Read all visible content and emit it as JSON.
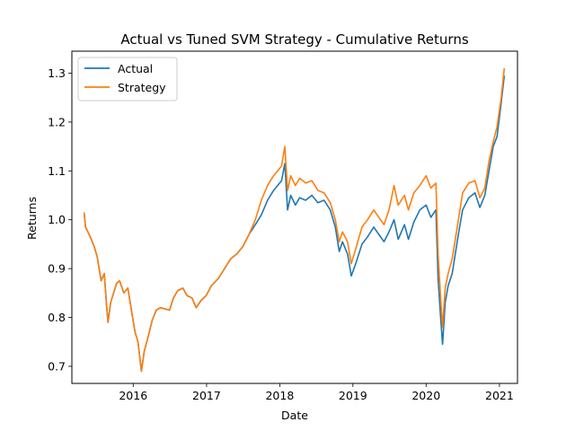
{
  "chart_data": {
    "type": "line",
    "title": "Actual vs Tuned SVM Strategy - Cumulative Returns",
    "xlabel": "Date",
    "ylabel": "Returns",
    "x_ticks": [
      "2016",
      "2017",
      "2018",
      "2019",
      "2020",
      "2021"
    ],
    "y_ticks": [
      "0.7",
      "0.8",
      "0.9",
      "1.0",
      "1.1",
      "1.2",
      "1.3"
    ],
    "xlim": [
      "2015-03-01",
      "2021-04-01"
    ],
    "ylim": [
      0.665,
      1.345
    ],
    "grid": false,
    "legend_position": "upper-left",
    "series": [
      {
        "name": "Actual",
        "color": "#1f77b4",
        "points": [
          [
            "2015-05-01",
            1.015
          ],
          [
            "2015-05-08",
            0.985
          ],
          [
            "2015-06-01",
            0.965
          ],
          [
            "2015-06-20",
            0.945
          ],
          [
            "2015-07-05",
            0.925
          ],
          [
            "2015-07-25",
            0.875
          ],
          [
            "2015-08-10",
            0.89
          ],
          [
            "2015-08-20",
            0.83
          ],
          [
            "2015-08-28",
            0.79
          ],
          [
            "2015-09-10",
            0.83
          ],
          [
            "2015-09-25",
            0.85
          ],
          [
            "2015-10-10",
            0.87
          ],
          [
            "2015-10-25",
            0.875
          ],
          [
            "2015-11-15",
            0.85
          ],
          [
            "2015-12-05",
            0.86
          ],
          [
            "2015-12-25",
            0.81
          ],
          [
            "2016-01-10",
            0.77
          ],
          [
            "2016-01-25",
            0.75
          ],
          [
            "2016-02-11",
            0.69
          ],
          [
            "2016-02-25",
            0.73
          ],
          [
            "2016-03-15",
            0.76
          ],
          [
            "2016-04-05",
            0.795
          ],
          [
            "2016-04-25",
            0.815
          ],
          [
            "2016-05-15",
            0.82
          ],
          [
            "2016-06-30",
            0.815
          ],
          [
            "2016-07-20",
            0.84
          ],
          [
            "2016-08-10",
            0.855
          ],
          [
            "2016-09-05",
            0.86
          ],
          [
            "2016-09-25",
            0.845
          ],
          [
            "2016-10-20",
            0.84
          ],
          [
            "2016-11-10",
            0.82
          ],
          [
            "2016-12-05",
            0.835
          ],
          [
            "2016-12-30",
            0.845
          ],
          [
            "2017-01-25",
            0.865
          ],
          [
            "2017-03-01",
            0.88
          ],
          [
            "2017-04-01",
            0.9
          ],
          [
            "2017-05-01",
            0.92
          ],
          [
            "2017-06-01",
            0.93
          ],
          [
            "2017-07-01",
            0.945
          ],
          [
            "2017-08-01",
            0.97
          ],
          [
            "2017-09-01",
            0.99
          ],
          [
            "2017-10-01",
            1.01
          ],
          [
            "2017-11-01",
            1.04
          ],
          [
            "2017-12-01",
            1.06
          ],
          [
            "2018-01-10",
            1.08
          ],
          [
            "2018-01-26",
            1.115
          ],
          [
            "2018-02-09",
            1.02
          ],
          [
            "2018-02-25",
            1.05
          ],
          [
            "2018-03-20",
            1.03
          ],
          [
            "2018-04-10",
            1.045
          ],
          [
            "2018-05-10",
            1.04
          ],
          [
            "2018-06-10",
            1.05
          ],
          [
            "2018-07-10",
            1.035
          ],
          [
            "2018-08-10",
            1.04
          ],
          [
            "2018-09-10",
            1.02
          ],
          [
            "2018-10-05",
            0.985
          ],
          [
            "2018-10-25",
            0.935
          ],
          [
            "2018-11-10",
            0.955
          ],
          [
            "2018-12-05",
            0.93
          ],
          [
            "2018-12-24",
            0.885
          ],
          [
            "2019-01-15",
            0.91
          ],
          [
            "2019-02-15",
            0.95
          ],
          [
            "2019-03-15",
            0.965
          ],
          [
            "2019-04-15",
            0.985
          ],
          [
            "2019-05-10",
            0.97
          ],
          [
            "2019-06-05",
            0.955
          ],
          [
            "2019-06-30",
            0.975
          ],
          [
            "2019-07-25",
            1.0
          ],
          [
            "2019-08-15",
            0.96
          ],
          [
            "2019-09-15",
            0.99
          ],
          [
            "2019-10-05",
            0.96
          ],
          [
            "2019-11-01",
            0.995
          ],
          [
            "2019-12-01",
            1.02
          ],
          [
            "2020-01-01",
            1.03
          ],
          [
            "2020-01-25",
            1.005
          ],
          [
            "2020-02-19",
            1.02
          ],
          [
            "2020-03-01",
            0.88
          ],
          [
            "2020-03-15",
            0.79
          ],
          [
            "2020-03-23",
            0.745
          ],
          [
            "2020-04-05",
            0.83
          ],
          [
            "2020-04-20",
            0.865
          ],
          [
            "2020-05-10",
            0.89
          ],
          [
            "2020-06-10",
            0.97
          ],
          [
            "2020-07-01",
            1.02
          ],
          [
            "2020-08-01",
            1.045
          ],
          [
            "2020-09-01",
            1.055
          ],
          [
            "2020-09-25",
            1.025
          ],
          [
            "2020-10-20",
            1.05
          ],
          [
            "2020-11-10",
            1.1
          ],
          [
            "2020-12-01",
            1.15
          ],
          [
            "2020-12-20",
            1.17
          ],
          [
            "2021-01-10",
            1.24
          ],
          [
            "2021-01-25",
            1.295
          ]
        ]
      },
      {
        "name": "Strategy",
        "color": "#ff7f0e",
        "points": [
          [
            "2015-05-01",
            1.015
          ],
          [
            "2015-05-08",
            0.985
          ],
          [
            "2015-06-01",
            0.965
          ],
          [
            "2015-06-20",
            0.945
          ],
          [
            "2015-07-05",
            0.925
          ],
          [
            "2015-07-25",
            0.875
          ],
          [
            "2015-08-10",
            0.89
          ],
          [
            "2015-08-20",
            0.83
          ],
          [
            "2015-08-28",
            0.79
          ],
          [
            "2015-09-10",
            0.83
          ],
          [
            "2015-09-25",
            0.85
          ],
          [
            "2015-10-10",
            0.87
          ],
          [
            "2015-10-25",
            0.875
          ],
          [
            "2015-11-15",
            0.85
          ],
          [
            "2015-12-05",
            0.86
          ],
          [
            "2015-12-25",
            0.81
          ],
          [
            "2016-01-10",
            0.77
          ],
          [
            "2016-01-25",
            0.75
          ],
          [
            "2016-02-11",
            0.69
          ],
          [
            "2016-02-25",
            0.73
          ],
          [
            "2016-03-15",
            0.76
          ],
          [
            "2016-04-05",
            0.795
          ],
          [
            "2016-04-25",
            0.815
          ],
          [
            "2016-05-15",
            0.82
          ],
          [
            "2016-06-30",
            0.815
          ],
          [
            "2016-07-20",
            0.84
          ],
          [
            "2016-08-10",
            0.855
          ],
          [
            "2016-09-05",
            0.86
          ],
          [
            "2016-09-25",
            0.845
          ],
          [
            "2016-10-20",
            0.84
          ],
          [
            "2016-11-10",
            0.82
          ],
          [
            "2016-12-05",
            0.835
          ],
          [
            "2016-12-30",
            0.845
          ],
          [
            "2017-01-25",
            0.865
          ],
          [
            "2017-03-01",
            0.88
          ],
          [
            "2017-04-01",
            0.9
          ],
          [
            "2017-05-01",
            0.92
          ],
          [
            "2017-06-01",
            0.93
          ],
          [
            "2017-07-01",
            0.945
          ],
          [
            "2017-08-01",
            0.97
          ],
          [
            "2017-09-01",
            1.0
          ],
          [
            "2017-10-01",
            1.04
          ],
          [
            "2017-11-01",
            1.07
          ],
          [
            "2017-12-01",
            1.09
          ],
          [
            "2018-01-10",
            1.11
          ],
          [
            "2018-01-26",
            1.15
          ],
          [
            "2018-02-09",
            1.06
          ],
          [
            "2018-02-25",
            1.09
          ],
          [
            "2018-03-20",
            1.07
          ],
          [
            "2018-04-10",
            1.085
          ],
          [
            "2018-05-10",
            1.075
          ],
          [
            "2018-06-10",
            1.08
          ],
          [
            "2018-07-10",
            1.06
          ],
          [
            "2018-08-10",
            1.055
          ],
          [
            "2018-09-10",
            1.035
          ],
          [
            "2018-10-05",
            1.0
          ],
          [
            "2018-10-25",
            0.955
          ],
          [
            "2018-11-10",
            0.975
          ],
          [
            "2018-12-05",
            0.955
          ],
          [
            "2018-12-24",
            0.91
          ],
          [
            "2019-01-15",
            0.94
          ],
          [
            "2019-02-15",
            0.985
          ],
          [
            "2019-03-15",
            1.0
          ],
          [
            "2019-04-15",
            1.02
          ],
          [
            "2019-05-10",
            1.005
          ],
          [
            "2019-06-05",
            0.99
          ],
          [
            "2019-06-30",
            1.02
          ],
          [
            "2019-07-25",
            1.07
          ],
          [
            "2019-08-15",
            1.03
          ],
          [
            "2019-09-15",
            1.05
          ],
          [
            "2019-10-05",
            1.02
          ],
          [
            "2019-11-01",
            1.055
          ],
          [
            "2019-12-01",
            1.07
          ],
          [
            "2020-01-01",
            1.09
          ],
          [
            "2020-01-25",
            1.065
          ],
          [
            "2020-02-19",
            1.075
          ],
          [
            "2020-03-01",
            0.93
          ],
          [
            "2020-03-15",
            0.83
          ],
          [
            "2020-03-23",
            0.78
          ],
          [
            "2020-04-05",
            0.86
          ],
          [
            "2020-04-20",
            0.89
          ],
          [
            "2020-05-10",
            0.92
          ],
          [
            "2020-06-10",
            1.0
          ],
          [
            "2020-07-01",
            1.055
          ],
          [
            "2020-08-01",
            1.075
          ],
          [
            "2020-09-01",
            1.08
          ],
          [
            "2020-09-25",
            1.045
          ],
          [
            "2020-10-20",
            1.065
          ],
          [
            "2020-11-10",
            1.12
          ],
          [
            "2020-12-01",
            1.16
          ],
          [
            "2020-12-20",
            1.19
          ],
          [
            "2021-01-10",
            1.25
          ],
          [
            "2021-01-25",
            1.31
          ]
        ]
      }
    ]
  }
}
